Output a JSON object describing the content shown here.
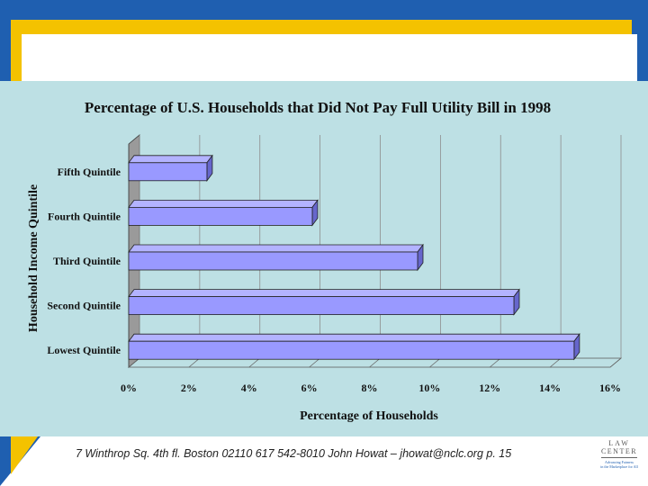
{
  "footer": {
    "text": "7 Winthrop Sq. 4th fl. Boston 02110  617 542-8010  John Howat – jhowat@nclc.org  p. 15"
  },
  "logo": {
    "line1": "LAW",
    "line2": "CENTER",
    "line3": "Advancing Fairness",
    "line4": "in the Marketplace for All"
  },
  "colors": {
    "frame_blue": "#1f5fb0",
    "frame_yellow": "#f4c200",
    "chart_bg": "#bde0e4",
    "bar_fill": "#9999ff",
    "bar_side": "#6666cc"
  },
  "chart_data": {
    "type": "bar",
    "orientation": "horizontal",
    "title": "Percentage of U.S. Households that Did Not Pay Full Utility Bill in 1998",
    "xlabel": "Percentage of Households",
    "ylabel": "Household Income Quintile",
    "categories": [
      "Fifth Quintile",
      "Fourth Quintile",
      "Third Quintile",
      "Second Quintile",
      "Lowest Quintile"
    ],
    "values": [
      2.6,
      6.1,
      9.6,
      12.8,
      14.8
    ],
    "xlim": [
      0,
      16
    ],
    "ticks": [
      {
        "value": 0,
        "label": "0%"
      },
      {
        "value": 2,
        "label": "2%"
      },
      {
        "value": 4,
        "label": "4%"
      },
      {
        "value": 6,
        "label": "6%"
      },
      {
        "value": 8,
        "label": "8%"
      },
      {
        "value": 10,
        "label": "10%"
      },
      {
        "value": 12,
        "label": "12%"
      },
      {
        "value": 14,
        "label": "14%"
      },
      {
        "value": 16,
        "label": "16%"
      }
    ],
    "grid": true,
    "legend": "none"
  }
}
